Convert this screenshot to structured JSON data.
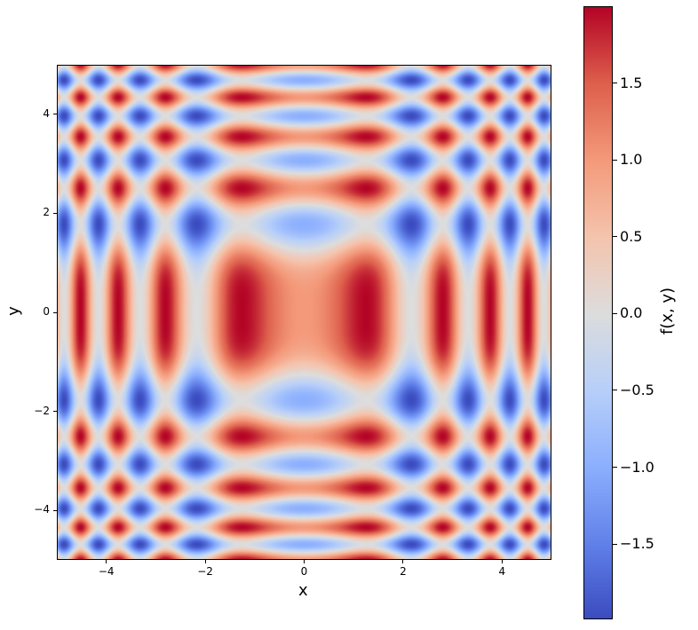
{
  "chart_data": {
    "type": "heatmap",
    "function": "sin(x^2) + cos(y^2)",
    "colormap": "coolwarm",
    "xlabel": "x",
    "ylabel": "y",
    "xlim": [
      -5,
      5
    ],
    "ylim": [
      -5,
      5
    ],
    "xticks": [
      -4,
      -2,
      0,
      2,
      4
    ],
    "yticks": [
      -4,
      -2,
      0,
      2,
      4
    ],
    "xtick_labels": [
      "−4",
      "−2",
      "0",
      "2",
      "4"
    ],
    "ytick_labels": [
      "−4",
      "−2",
      "0",
      "2",
      "4"
    ],
    "colorbar": {
      "label": "f(x, y)",
      "range": [
        -1.99,
        2.0
      ],
      "ticks": [
        -1.5,
        -1.0,
        -0.5,
        0.0,
        0.5,
        1.0,
        1.5
      ],
      "tick_labels": [
        "−1.5",
        "−1.0",
        "−0.5",
        "0.0",
        "0.5",
        "1.0",
        "1.5"
      ]
    },
    "grid": false
  }
}
